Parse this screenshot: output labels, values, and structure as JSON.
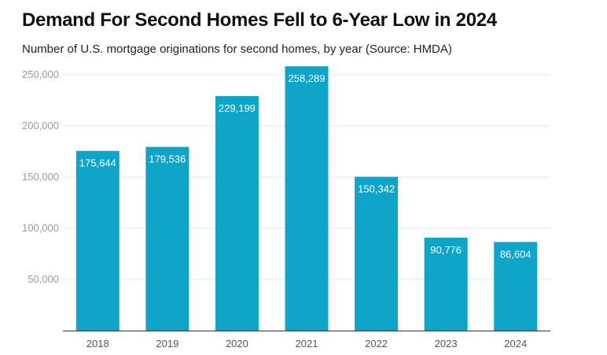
{
  "title": "Demand For Second Homes Fell to 6-Year Low in 2024",
  "subtitle": "Number of U.S. mortgage originations for second homes, by year (Source: HMDA)",
  "colors": {
    "bar": "#0ea5c9",
    "grid": "#e6e6e6",
    "axis": "#333333"
  },
  "chart_data": {
    "type": "bar",
    "title": "Demand For Second Homes Fell to 6-Year Low in 2024",
    "subtitle": "Number of U.S. mortgage originations for second homes, by year (Source: HMDA)",
    "categories": [
      "2018",
      "2019",
      "2020",
      "2021",
      "2022",
      "2023",
      "2024"
    ],
    "values": [
      175644,
      179536,
      229199,
      258289,
      150342,
      90776,
      86604
    ],
    "value_labels": [
      "175,644",
      "179,536",
      "229,199",
      "258,289",
      "150,342",
      "90,776",
      "86,604"
    ],
    "yticks": [
      50000,
      100000,
      150000,
      200000,
      250000
    ],
    "ytick_labels": [
      "50,000",
      "100,000",
      "150,000",
      "200,000",
      "250,000"
    ],
    "ylim": [
      0,
      260000
    ],
    "grid": true,
    "legend": "none"
  }
}
